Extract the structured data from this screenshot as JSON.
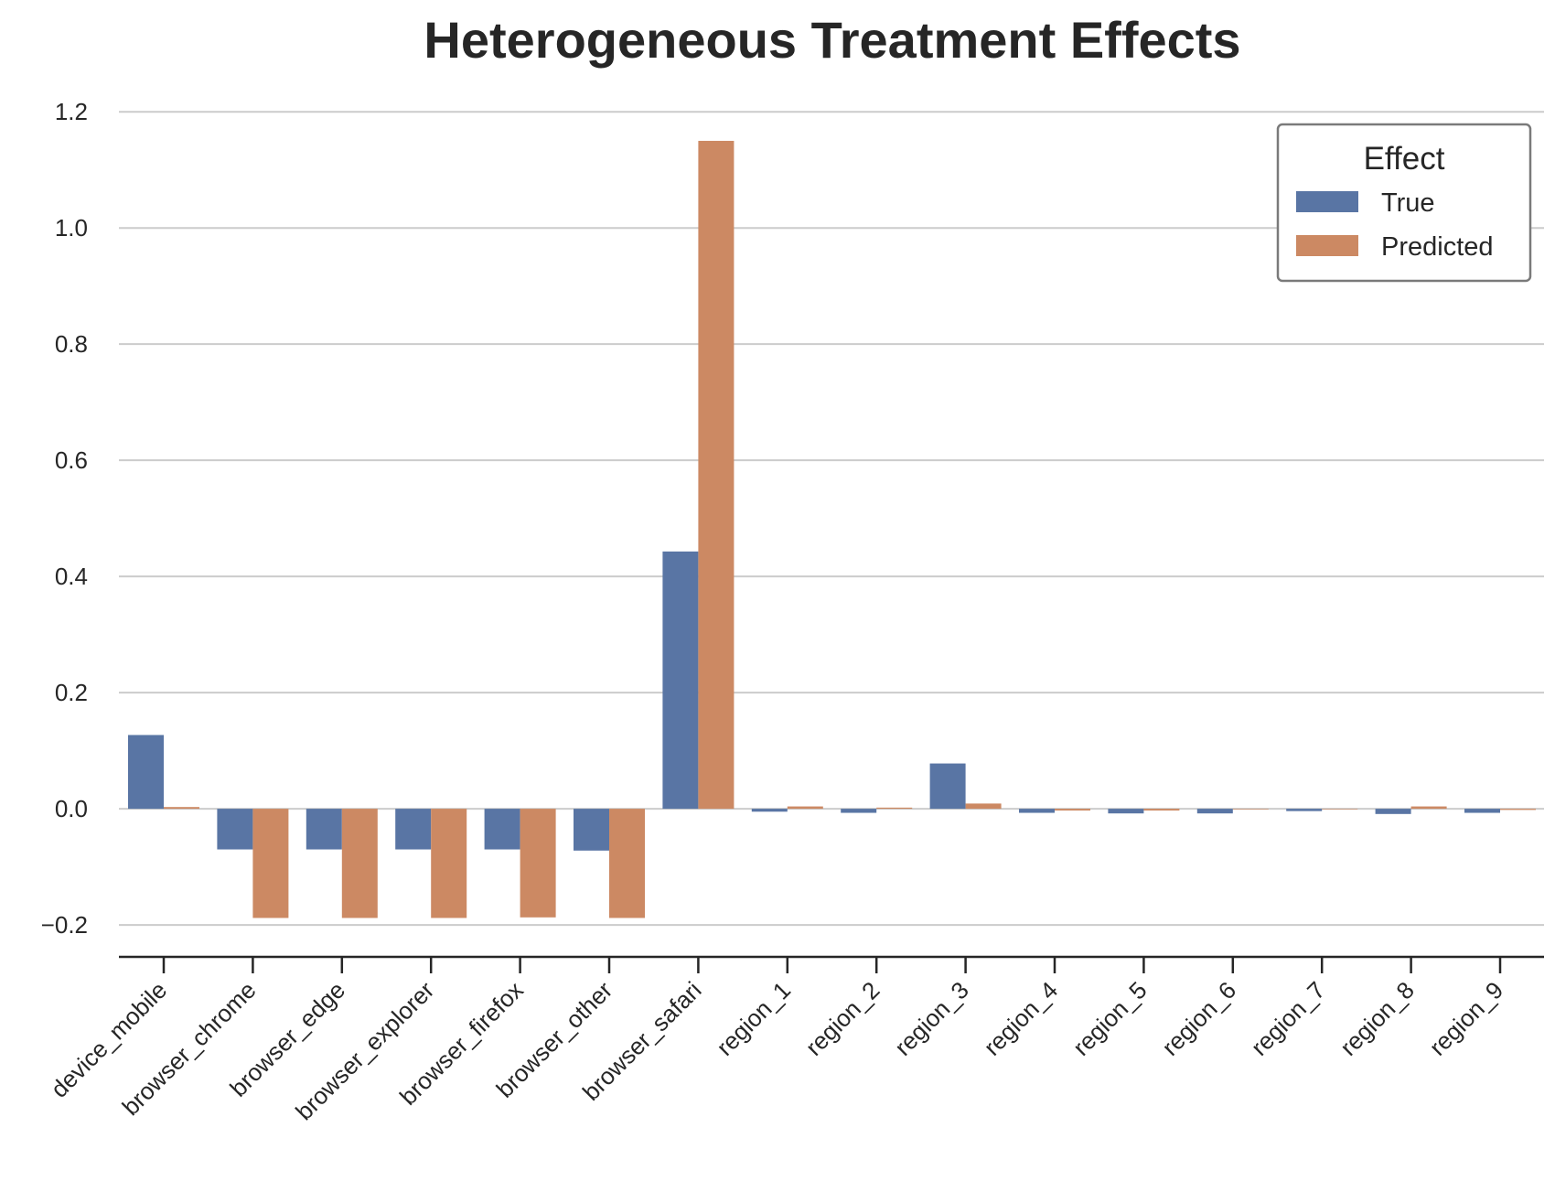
{
  "chart_data": {
    "type": "bar",
    "title": "Heterogeneous Treatment Effects",
    "xlabel": "",
    "ylabel": "",
    "categories": [
      "device_mobile",
      "browser_chrome",
      "browser_edge",
      "browser_explorer",
      "browser_firefox",
      "browser_other",
      "browser_safari",
      "region_1",
      "region_2",
      "region_3",
      "region_4",
      "region_5",
      "region_6",
      "region_7",
      "region_8",
      "region_9"
    ],
    "series": [
      {
        "name": "True",
        "color": "#5975a4",
        "values": [
          0.127,
          -0.07,
          -0.07,
          -0.07,
          -0.07,
          -0.072,
          0.443,
          -0.005,
          -0.007,
          0.078,
          -0.007,
          -0.008,
          -0.008,
          -0.004,
          -0.009,
          -0.007
        ]
      },
      {
        "name": "Predicted",
        "color": "#cc8963",
        "values": [
          0.003,
          -0.188,
          -0.188,
          -0.188,
          -0.187,
          -0.188,
          1.15,
          0.004,
          0.002,
          0.009,
          -0.003,
          -0.003,
          -0.001,
          0.0,
          0.004,
          -0.002
        ]
      }
    ],
    "ylim": [
      -0.255,
      1.235
    ],
    "yticks": [
      -0.2,
      0.0,
      0.2,
      0.4,
      0.6,
      0.8,
      1.0,
      1.2
    ],
    "ytick_labels": [
      "−0.2",
      "0.0",
      "0.2",
      "0.4",
      "0.6",
      "0.8",
      "1.0",
      "1.2"
    ],
    "grid": "horizontal",
    "legend": {
      "title": "Effect",
      "position": "top-right"
    }
  }
}
